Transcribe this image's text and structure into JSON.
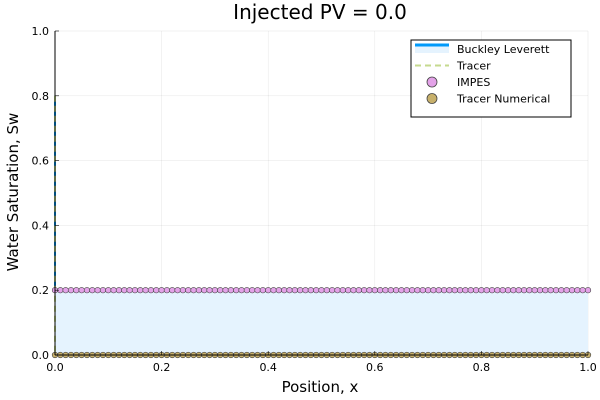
{
  "chart_data": {
    "type": "line",
    "title": "Injected PV = 0.0",
    "xlabel": "Position, x",
    "ylabel": "Water Saturation, Sw",
    "xlim": [
      0,
      1
    ],
    "ylim": [
      0,
      1
    ],
    "x_ticks": [
      "0.0",
      "0.2",
      "0.4",
      "0.6",
      "0.8",
      "1.0"
    ],
    "y_ticks": [
      "0.0",
      "0.2",
      "0.4",
      "0.6",
      "0.8",
      "1.0"
    ],
    "grid": true,
    "legend_position": "top-right",
    "series": [
      {
        "name": "Buckley Leverett",
        "style": "line-with-fill",
        "color": "#009AFA",
        "fill_color": "#E5F3FE",
        "points": [
          [
            0.0,
            0.8
          ],
          [
            0.0,
            0.2
          ],
          [
            1.0,
            0.2
          ]
        ]
      },
      {
        "name": "Tracer",
        "style": "dashed-line",
        "color": "#C6DA8F",
        "points": [
          [
            0.0,
            0.8
          ],
          [
            0.0,
            0.0
          ],
          [
            1.0,
            0.0
          ]
        ]
      },
      {
        "name": "IMPES",
        "style": "markers",
        "color": "#E3A2E8",
        "marker_count": 101,
        "x_range": [
          0.0,
          1.0
        ],
        "y": 0.2
      },
      {
        "name": "Tracer Numerical",
        "style": "markers",
        "color": "#C7B06B",
        "marker_count": 101,
        "x_range": [
          0.0,
          1.0
        ],
        "y": 0.0
      }
    ]
  }
}
